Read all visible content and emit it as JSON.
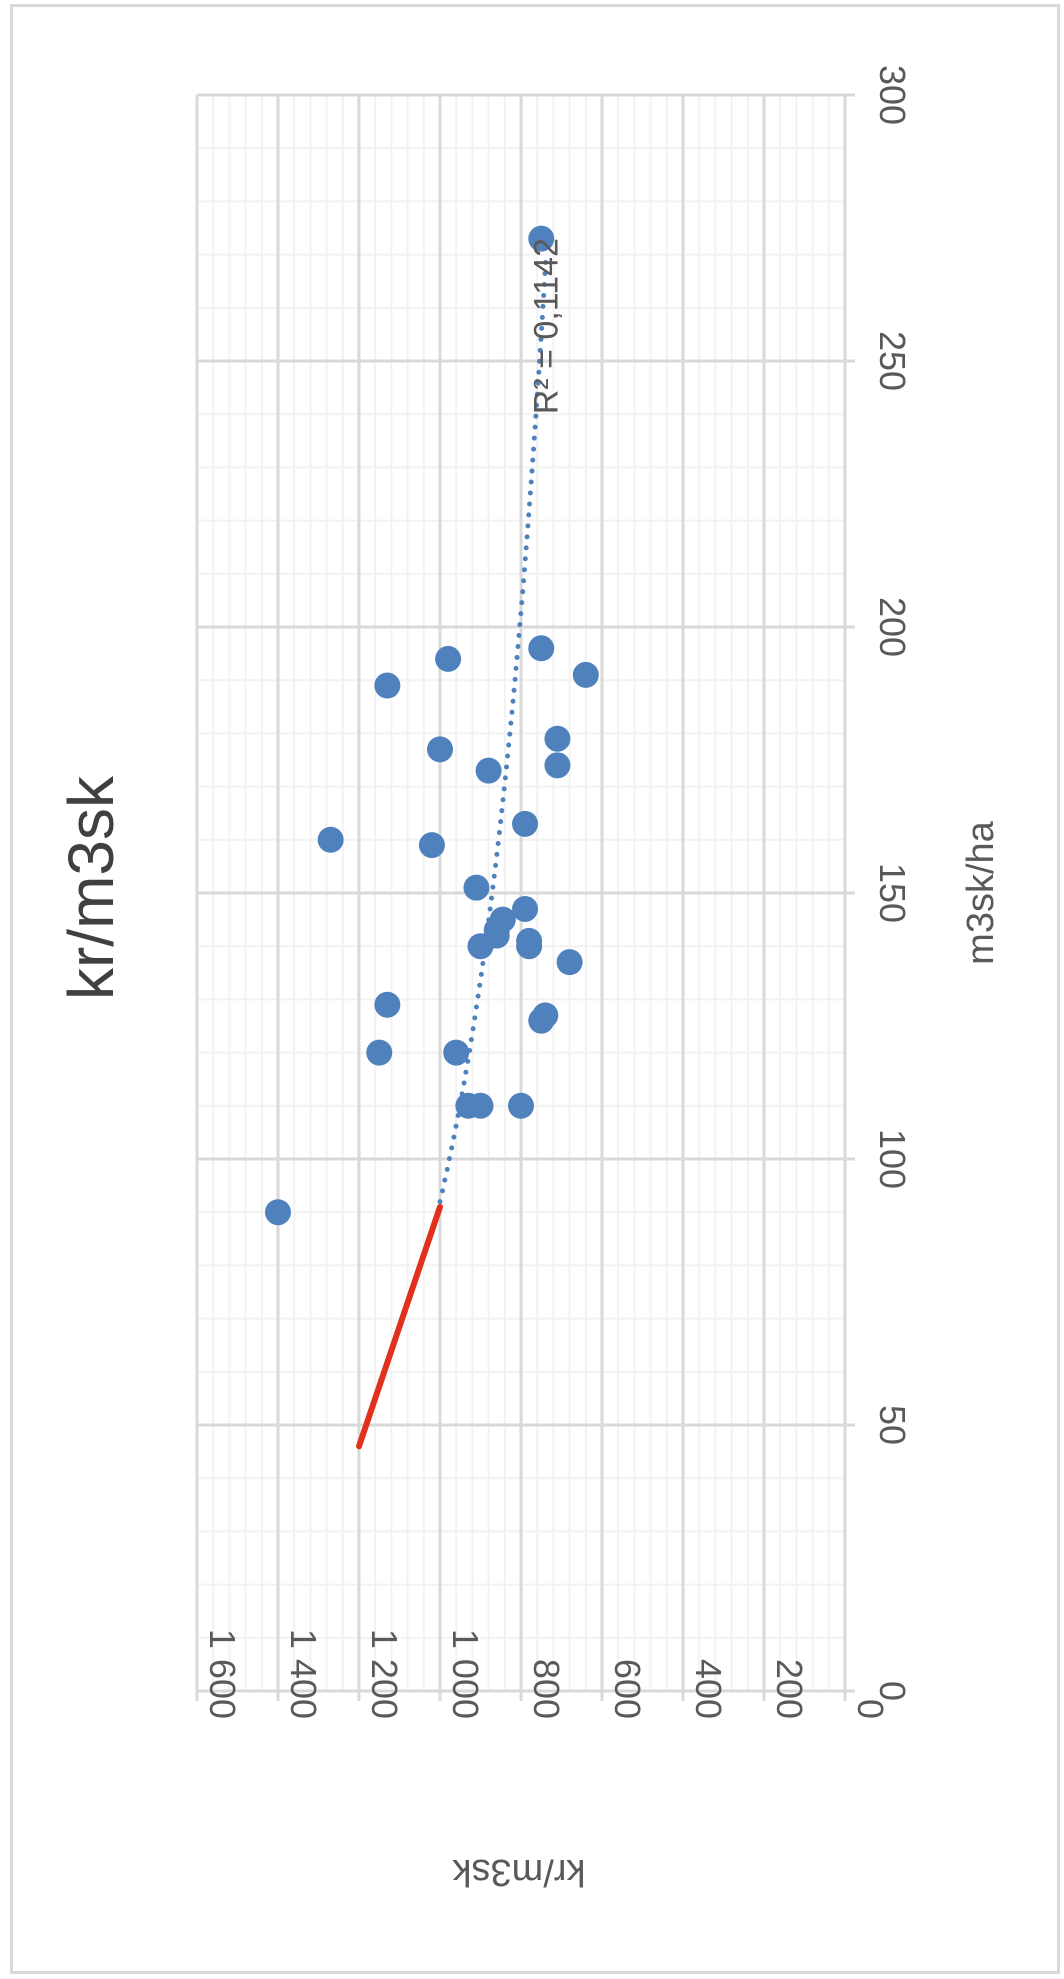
{
  "chart_data": {
    "type": "scatter",
    "title": "kr/m3sk",
    "xlabel": "m3sk/ha",
    "ylabel": "kr/m3sk",
    "xlim": [
      0,
      300
    ],
    "ylim": [
      0,
      1600
    ],
    "x_ticks": [
      0,
      50,
      100,
      150,
      200,
      250,
      300
    ],
    "x_tick_labels": [
      "0",
      "50",
      "100",
      "150",
      "200",
      "250",
      "300"
    ],
    "y_ticks": [
      0,
      200,
      400,
      600,
      800,
      1000,
      1200,
      1400,
      1600
    ],
    "y_tick_labels": [
      "0",
      "200",
      "400",
      "600",
      "800",
      "1 000",
      "1 200",
      "1 400",
      "1 600"
    ],
    "grid": true,
    "orientation": "rotated 90° clockwise",
    "colors": {
      "points": "#4f81bd",
      "trendline": "#4f81bd",
      "red_line": "#e0301e",
      "grid_major": "#d9d9d9",
      "grid_minor": "#f2f2f2"
    },
    "series": [
      {
        "marker": "circle",
        "points": [
          [
            90,
            1400
          ],
          [
            110,
            930
          ],
          [
            110,
            900
          ],
          [
            110,
            800
          ],
          [
            120,
            960
          ],
          [
            120,
            1150
          ],
          [
            129,
            1130
          ],
          [
            126,
            750
          ],
          [
            127,
            740
          ],
          [
            137,
            680
          ],
          [
            140,
            900
          ],
          [
            140,
            780
          ],
          [
            141,
            780
          ],
          [
            142,
            860
          ],
          [
            143,
            860
          ],
          [
            145,
            845
          ],
          [
            147,
            790
          ],
          [
            151,
            910
          ],
          [
            159,
            1020
          ],
          [
            160,
            1270
          ],
          [
            163,
            790
          ],
          [
            173,
            880
          ],
          [
            174,
            710
          ],
          [
            177,
            1000
          ],
          [
            179,
            710
          ],
          [
            189,
            1130
          ],
          [
            191,
            640
          ],
          [
            194,
            980
          ],
          [
            196,
            750
          ],
          [
            273,
            750
          ]
        ]
      }
    ],
    "trendline": {
      "type": "power",
      "from": [
        92,
        1000
      ],
      "to": [
        270,
        738
      ],
      "r2_label": "R² = 0,1142",
      "r2_position": [
        240,
        710
      ]
    },
    "red_line": {
      "from": [
        46,
        1200
      ],
      "to": [
        91,
        1000
      ]
    }
  }
}
